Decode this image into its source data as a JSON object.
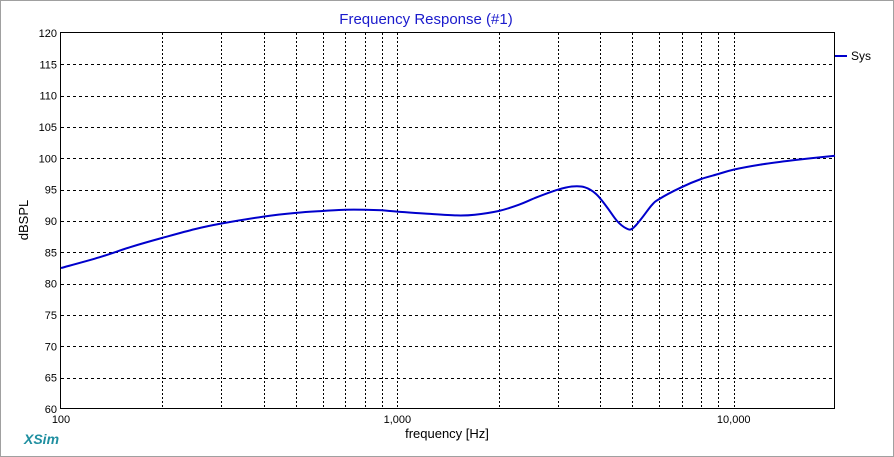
{
  "app": {
    "brand": "XSim"
  },
  "chart_data": {
    "type": "line",
    "title": "Frequency Response (#1)",
    "xlabel": "frequency [Hz]",
    "ylabel": "dBSPL",
    "xscale": "log",
    "xlim": [
      100,
      20000
    ],
    "ylim": [
      60,
      120
    ],
    "grid": true,
    "legend_position": "top-right",
    "y_ticks": [
      60,
      65,
      70,
      75,
      80,
      85,
      90,
      95,
      100,
      105,
      110,
      115,
      120
    ],
    "x_tick_labels": [
      {
        "value": 100,
        "label": "100"
      },
      {
        "value": 1000,
        "label": "1,000"
      },
      {
        "value": 10000,
        "label": "10,000"
      }
    ],
    "series": [
      {
        "name": "Sys",
        "color": "#0000cc",
        "x": [
          100,
          130,
          160,
          200,
          250,
          300,
          400,
          500,
          600,
          700,
          800,
          900,
          1000,
          1200,
          1500,
          1700,
          2000,
          2300,
          2600,
          3000,
          3300,
          3600,
          3900,
          4200,
          4500,
          4800,
          5000,
          5300,
          5700,
          6000,
          7000,
          8000,
          9000,
          10000,
          12000,
          15000,
          20000
        ],
        "y": [
          82.5,
          84.2,
          85.8,
          87.3,
          88.7,
          89.6,
          90.7,
          91.3,
          91.6,
          91.8,
          91.8,
          91.7,
          91.5,
          91.2,
          90.9,
          91.0,
          91.6,
          92.6,
          93.8,
          95.0,
          95.5,
          95.4,
          94.3,
          92.2,
          90.0,
          88.8,
          88.8,
          90.3,
          92.5,
          93.5,
          95.4,
          96.7,
          97.5,
          98.2,
          99.0,
          99.7,
          100.4
        ]
      }
    ]
  }
}
